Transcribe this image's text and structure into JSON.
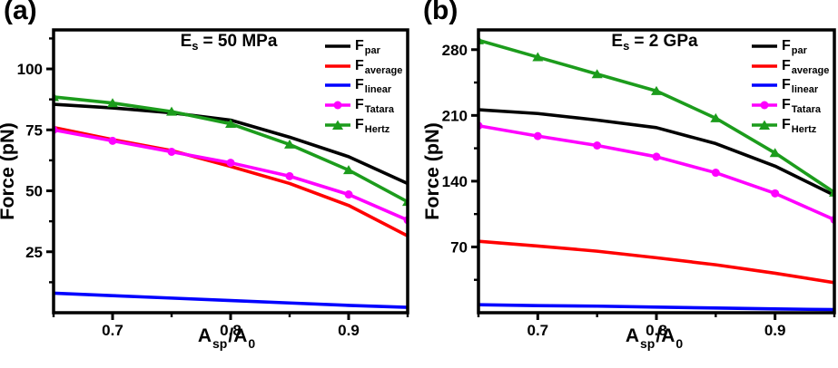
{
  "figure": {
    "background": "#ffffff",
    "ylabel": "Force (pN)",
    "xlabel": "A_sp/A_0",
    "xlabel_parts": {
      "base1": "A",
      "sub1": "sp",
      "mid": "/A",
      "sub2": "0"
    }
  },
  "colors": {
    "F_par": "#000000",
    "F_average": "#ff0000",
    "F_linear": "#0000ff",
    "F_Tatara": "#ff00ff",
    "F_Hertz": "#1c9c1c",
    "axis": "#000000"
  },
  "chart_data": [
    {
      "type": "line",
      "panel": "(a)",
      "title": "E_s = 50 MPa",
      "title_parts": {
        "base": "E",
        "sub": "s",
        "rest": "= 50 MPa"
      },
      "xlabel": "A_sp/A_0",
      "ylabel": "Force (pN)",
      "x": [
        0.65,
        0.7,
        0.75,
        0.8,
        0.85,
        0.9,
        0.95
      ],
      "xlim": [
        0.65,
        0.95
      ],
      "ylim": [
        0,
        116
      ],
      "xticks": [
        0.7,
        0.8,
        0.9
      ],
      "xtick_labels": [
        "0.7",
        "0.8",
        "0.9"
      ],
      "x_minor_ticks": [
        0.65,
        0.75,
        0.85,
        0.95
      ],
      "yticks": [
        25,
        50,
        75,
        100
      ],
      "y_minor_ticks": [
        12.5,
        37.5,
        62.5,
        87.5,
        112.5
      ],
      "grid": false,
      "legend_position": "top-right",
      "series": [
        {
          "name": "F_par",
          "label_parts": {
            "base": "F",
            "sub": "par"
          },
          "color": "#000000",
          "marker": "none",
          "values": [
            85.5,
            84,
            82,
            79,
            72,
            64,
            53
          ]
        },
        {
          "name": "F_average",
          "label_parts": {
            "base": "F",
            "sub": "average"
          },
          "color": "#ff0000",
          "marker": "none",
          "values": [
            76,
            71,
            66.5,
            60,
            53,
            44,
            31.5
          ]
        },
        {
          "name": "F_linear",
          "label_parts": {
            "base": "F",
            "sub": "linear"
          },
          "color": "#0000ff",
          "marker": "none",
          "values": [
            8,
            7,
            6,
            5,
            4,
            3,
            2.2
          ]
        },
        {
          "name": "F_Tatara",
          "label_parts": {
            "base": "F",
            "sub": "Tatara"
          },
          "color": "#ff00ff",
          "marker": "circle",
          "values": [
            75,
            70.5,
            66,
            61.5,
            56,
            48.5,
            38
          ]
        },
        {
          "name": "F_Hertz",
          "label_parts": {
            "base": "F",
            "sub": "Hertz"
          },
          "color": "#1c9c1c",
          "marker": "triangle",
          "values": [
            88.5,
            86,
            82.5,
            77.5,
            69,
            58.5,
            45.5
          ]
        }
      ]
    },
    {
      "type": "line",
      "panel": "(b)",
      "title": "E_s = 2 GPa",
      "title_parts": {
        "base": "E",
        "sub": "s",
        "rest": "= 2 GPa"
      },
      "xlabel": "A_sp/A_0",
      "ylabel": "Force (pN)",
      "x": [
        0.65,
        0.7,
        0.75,
        0.8,
        0.85,
        0.9,
        0.95
      ],
      "xlim": [
        0.65,
        0.95
      ],
      "ylim": [
        0,
        301
      ],
      "xticks": [
        0.7,
        0.8,
        0.9
      ],
      "xtick_labels": [
        "0.7",
        "0.8",
        "0.9"
      ],
      "x_minor_ticks": [
        0.65,
        0.75,
        0.85,
        0.95
      ],
      "yticks": [
        70,
        140,
        210,
        280
      ],
      "y_minor_ticks": [
        35,
        105,
        175,
        245
      ],
      "grid": false,
      "legend_position": "top-right",
      "series": [
        {
          "name": "F_par",
          "label_parts": {
            "base": "F",
            "sub": "par"
          },
          "color": "#000000",
          "marker": "none",
          "values": [
            216,
            212,
            205,
            197,
            180,
            156,
            125
          ]
        },
        {
          "name": "F_average",
          "label_parts": {
            "base": "F",
            "sub": "average"
          },
          "color": "#ff0000",
          "marker": "none",
          "values": [
            76,
            71,
            65.5,
            58.5,
            51,
            42,
            32
          ]
        },
        {
          "name": "F_linear",
          "label_parts": {
            "base": "F",
            "sub": "linear"
          },
          "color": "#0000ff",
          "marker": "none",
          "values": [
            8.5,
            7.5,
            7,
            6,
            5,
            4,
            3.3
          ]
        },
        {
          "name": "F_Tatara",
          "label_parts": {
            "base": "F",
            "sub": "Tatara"
          },
          "color": "#ff00ff",
          "marker": "circle",
          "values": [
            199,
            188,
            178,
            166,
            149,
            127,
            99
          ]
        },
        {
          "name": "F_Hertz",
          "label_parts": {
            "base": "F",
            "sub": "Hertz"
          },
          "color": "#1c9c1c",
          "marker": "triangle",
          "values": [
            290,
            272,
            254,
            236,
            207,
            170,
            128
          ]
        }
      ]
    }
  ]
}
